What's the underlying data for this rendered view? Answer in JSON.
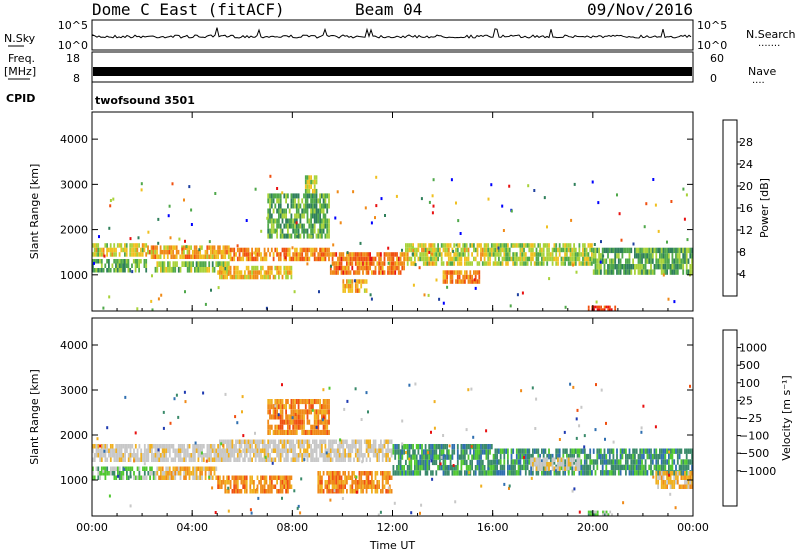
{
  "header": {
    "station": "Dome C East (fitACF)",
    "beam": "Beam 04",
    "date": "09/Nov/2016"
  },
  "strips": {
    "nsky": {
      "label": "N.Sky",
      "left_ticks": [
        "10^5",
        "10^0"
      ],
      "right_ticks": [
        "10^5",
        "10^0"
      ],
      "right_label": "N.Search",
      "right_dots": "·······"
    },
    "freq": {
      "label_line1": "Freq.",
      "label_line2": "[MHz]",
      "left_ticks": [
        "18",
        "8"
      ],
      "right_ticks": [
        "60",
        "0"
      ],
      "right_label": "Nave",
      "right_dots": "····"
    },
    "cpid": {
      "label": "CPID",
      "value": "twofsound 3501"
    }
  },
  "colors": {
    "power": [
      "#0000ff",
      "#1e40a0",
      "#2f7f5a",
      "#4fa84a",
      "#a8d23a",
      "#f0c020",
      "#f08a18",
      "#f05010",
      "#e81010"
    ],
    "velocity": [
      "#e81010",
      "#f05010",
      "#f08a18",
      "#f0b020",
      "#c8c8c8",
      "#c8c8c8",
      "#50c830",
      "#3a8a6a",
      "#2f6fb0",
      "#1e3ab0"
    ]
  },
  "chart_data": [
    {
      "type": "heatmap",
      "ylabel": "Slant Range [km]",
      "xlabel": "",
      "x_ticks": [
        "00:00",
        "04:00",
        "08:00",
        "12:00",
        "16:00",
        "20:00",
        "00:00"
      ],
      "x_tick_hours": [
        0,
        4,
        8,
        12,
        16,
        20,
        24
      ],
      "xlim": [
        0,
        24
      ],
      "ylim": [
        200,
        4600
      ],
      "y_ticks": [
        1000,
        2000,
        3000,
        4000
      ],
      "colorbar": {
        "label": "Power [dB]",
        "range": [
          0,
          32
        ],
        "ticks": [
          "4",
          "8",
          "12",
          "16",
          "20",
          "24",
          "28"
        ],
        "tick_values": [
          4,
          8,
          12,
          16,
          20,
          24,
          28
        ]
      },
      "bands": [
        {
          "t0": 0.0,
          "t1": 2.2,
          "r0": 1400,
          "r1": 1700,
          "level": 18
        },
        {
          "t0": 0.0,
          "t1": 2.2,
          "r0": 1050,
          "r1": 1350,
          "level": 12
        },
        {
          "t0": 2.2,
          "t1": 5.5,
          "r0": 1350,
          "r1": 1650,
          "level": 22
        },
        {
          "t0": 2.5,
          "t1": 5.5,
          "r0": 1050,
          "r1": 1300,
          "level": 14
        },
        {
          "t0": 5.5,
          "t1": 9.5,
          "r0": 1300,
          "r1": 1600,
          "level": 24
        },
        {
          "t0": 5.0,
          "t1": 8.0,
          "r0": 900,
          "r1": 1200,
          "level": 20
        },
        {
          "t0": 7.0,
          "t1": 9.5,
          "r0": 1800,
          "r1": 2800,
          "level": 12
        },
        {
          "t0": 8.5,
          "t1": 9.0,
          "r0": 2800,
          "r1": 3200,
          "level": 16
        },
        {
          "t0": 9.5,
          "t1": 12.5,
          "r0": 1000,
          "r1": 1500,
          "level": 26
        },
        {
          "t0": 10.0,
          "t1": 11.0,
          "r0": 600,
          "r1": 900,
          "level": 22
        },
        {
          "t0": 12.5,
          "t1": 16.0,
          "r0": 1200,
          "r1": 1700,
          "level": 18
        },
        {
          "t0": 14.0,
          "t1": 15.5,
          "r0": 800,
          "r1": 1100,
          "level": 24
        },
        {
          "t0": 16.0,
          "t1": 20.0,
          "r0": 1200,
          "r1": 1700,
          "level": 16
        },
        {
          "t0": 20.0,
          "t1": 24.0,
          "r0": 1000,
          "r1": 1600,
          "level": 12
        },
        {
          "t0": 19.8,
          "t1": 21.0,
          "r0": 200,
          "r1": 320,
          "level": 30
        }
      ]
    },
    {
      "type": "heatmap",
      "ylabel": "Slant Range [km]",
      "xlabel": "Time UT",
      "x_ticks": [
        "00:00",
        "04:00",
        "08:00",
        "12:00",
        "16:00",
        "20:00",
        "00:00"
      ],
      "x_tick_hours": [
        0,
        4,
        8,
        12,
        16,
        20,
        24
      ],
      "xlim": [
        0,
        24
      ],
      "ylim": [
        200,
        4600
      ],
      "y_ticks": [
        1000,
        2000,
        3000,
        4000
      ],
      "colorbar": {
        "label": "Velocity [m s⁻¹]",
        "ticks": [
          "1000",
          "500",
          "100",
          "25",
          "−25",
          "−100",
          "−500",
          "−1000"
        ],
        "tick_positions": [
          1,
          2,
          3,
          4,
          5,
          6,
          7,
          8
        ],
        "n_cells": 10
      },
      "bands": [
        {
          "t0": 0.0,
          "t1": 5.5,
          "r0": 1400,
          "r1": 1800,
          "level": 4
        },
        {
          "t0": 0.0,
          "t1": 2.5,
          "r0": 1000,
          "r1": 1300,
          "level": 6
        },
        {
          "t0": 2.5,
          "t1": 5.0,
          "r0": 1000,
          "r1": 1300,
          "level": 3
        },
        {
          "t0": 5.0,
          "t1": 12.0,
          "r0": 1400,
          "r1": 1900,
          "level": 4
        },
        {
          "t0": 5.0,
          "t1": 8.0,
          "r0": 700,
          "r1": 1100,
          "level": 2
        },
        {
          "t0": 7.0,
          "t1": 9.5,
          "r0": 2000,
          "r1": 2800,
          "level": 2
        },
        {
          "t0": 9.0,
          "t1": 12.0,
          "r0": 700,
          "r1": 1200,
          "level": 2
        },
        {
          "t0": 12.0,
          "t1": 16.0,
          "r0": 1100,
          "r1": 1800,
          "level": 7
        },
        {
          "t0": 16.0,
          "t1": 24.0,
          "r0": 1100,
          "r1": 1700,
          "level": 7
        },
        {
          "t0": 17.5,
          "t1": 19.5,
          "r0": 1200,
          "r1": 1500,
          "level": 4
        },
        {
          "t0": 22.5,
          "t1": 24.0,
          "r0": 800,
          "r1": 1200,
          "level": 3
        },
        {
          "t0": 19.8,
          "t1": 20.8,
          "r0": 200,
          "r1": 320,
          "level": 6
        }
      ]
    }
  ]
}
